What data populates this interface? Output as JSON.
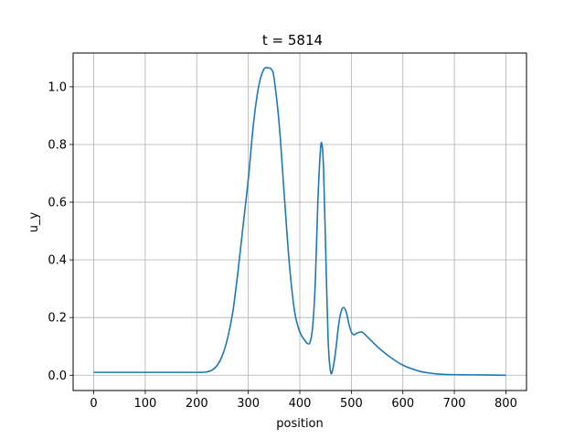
{
  "chart_data": {
    "type": "line",
    "title": "t = 5814",
    "xlabel": "position",
    "ylabel": "u_y",
    "xlim": [
      -40,
      840
    ],
    "ylim": [
      -0.053,
      1.117
    ],
    "xticks": [
      0,
      100,
      200,
      300,
      400,
      500,
      600,
      700,
      800
    ],
    "yticks": [
      0.0,
      0.2,
      0.4,
      0.6,
      0.8,
      1.0
    ],
    "xtick_labels": [
      "0",
      "100",
      "200",
      "300",
      "400",
      "500",
      "600",
      "700",
      "800"
    ],
    "ytick_labels": [
      "0.0",
      "0.2",
      "0.4",
      "0.6",
      "0.8",
      "1.0"
    ],
    "grid": true,
    "series": [
      {
        "color": "#1f77b4",
        "x": [
          0,
          50,
          100,
          150,
          200,
          210,
          220,
          230,
          240,
          250,
          260,
          270,
          280,
          290,
          300,
          310,
          320,
          330,
          340,
          345,
          350,
          360,
          370,
          380,
          390,
          400,
          410,
          415,
          420,
          425,
          430,
          435,
          440,
          443,
          446,
          450,
          455,
          460,
          465,
          470,
          475,
          480,
          485,
          490,
          495,
          500,
          505,
          510,
          520,
          530,
          550,
          570,
          600,
          630,
          650,
          670,
          700,
          750,
          800
        ],
        "y": [
          0.01,
          0.01,
          0.01,
          0.01,
          0.01,
          0.01,
          0.012,
          0.018,
          0.035,
          0.07,
          0.13,
          0.22,
          0.36,
          0.52,
          0.68,
          0.87,
          1.0,
          1.06,
          1.065,
          1.06,
          1.03,
          0.87,
          0.62,
          0.38,
          0.22,
          0.15,
          0.12,
          0.11,
          0.115,
          0.17,
          0.32,
          0.6,
          0.78,
          0.8,
          0.72,
          0.45,
          0.12,
          0.01,
          0.03,
          0.09,
          0.17,
          0.22,
          0.235,
          0.22,
          0.18,
          0.15,
          0.14,
          0.145,
          0.15,
          0.135,
          0.1,
          0.07,
          0.035,
          0.015,
          0.008,
          0.004,
          0.002,
          0.001,
          0.0
        ]
      }
    ]
  }
}
